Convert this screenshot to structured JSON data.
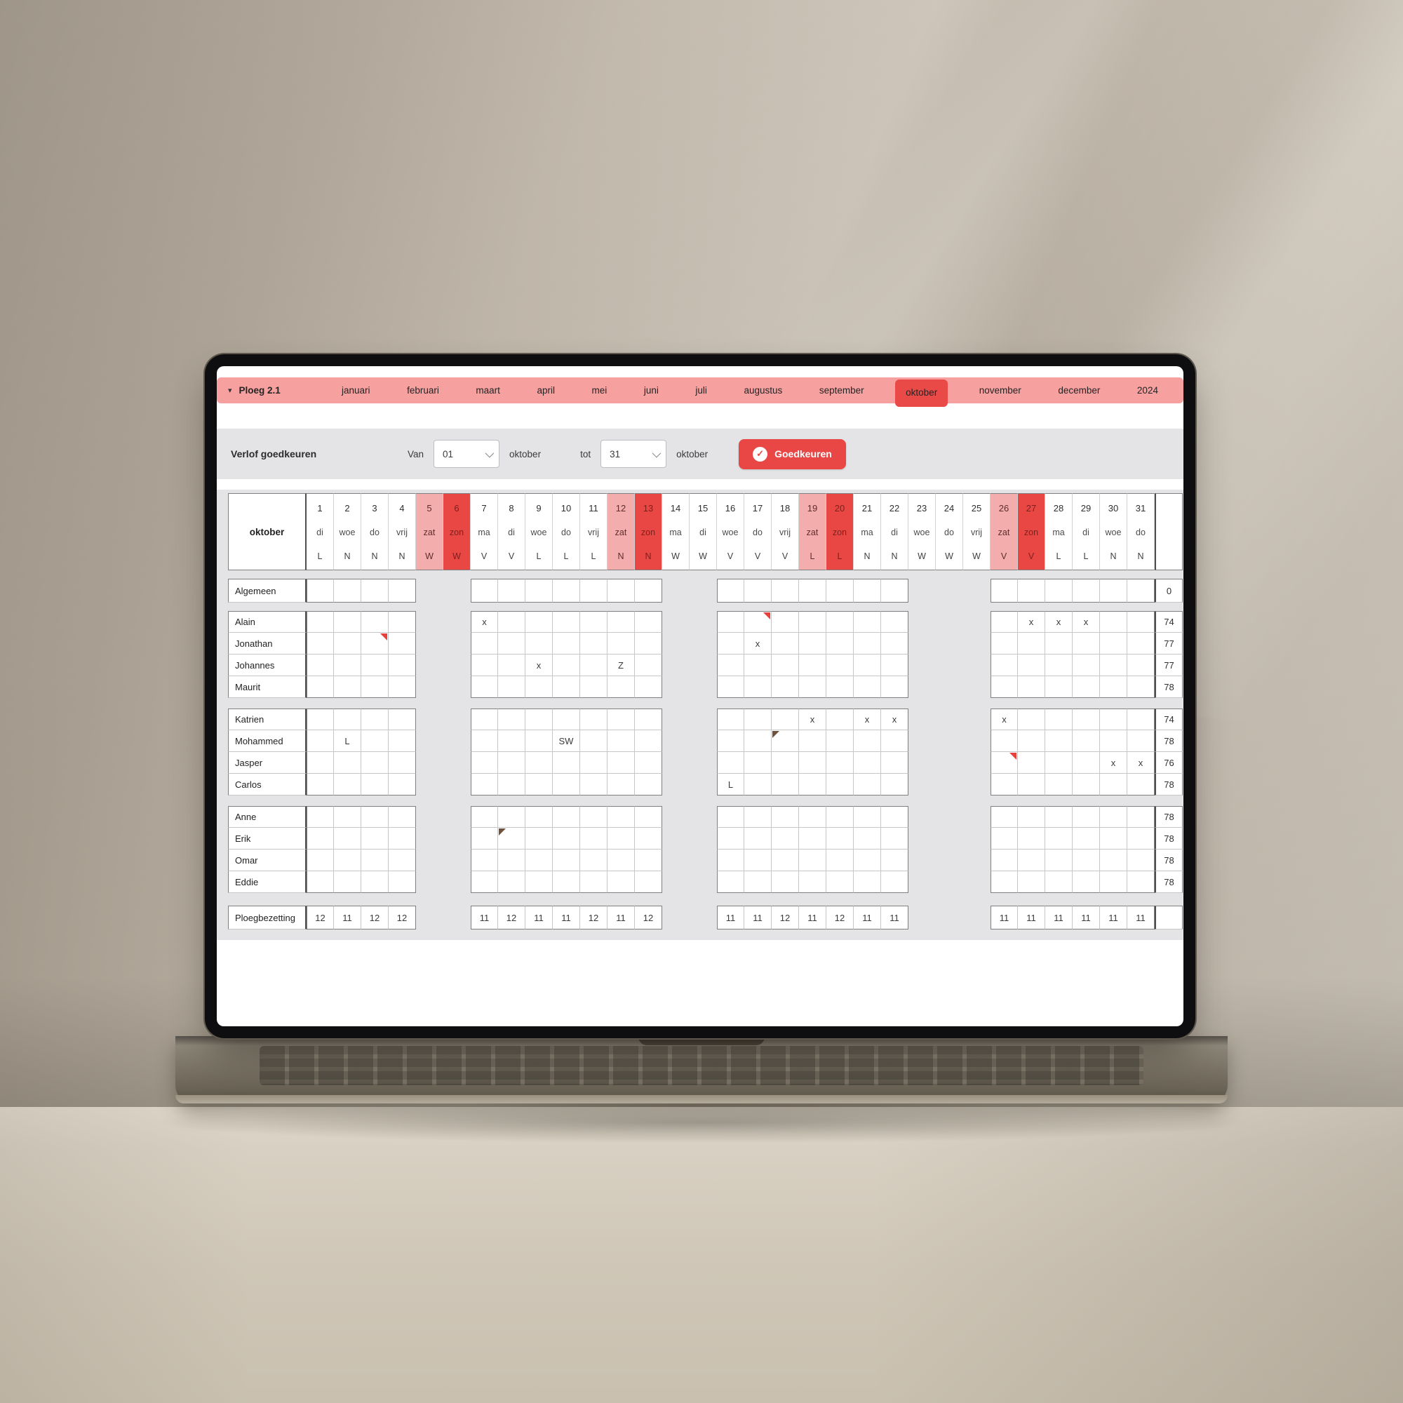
{
  "nav": {
    "caret_icon": "▾",
    "team_label": "Ploeg 2.1",
    "months": [
      "januari",
      "februari",
      "maart",
      "april",
      "mei",
      "juni",
      "juli",
      "augustus",
      "september",
      "oktober",
      "november",
      "december"
    ],
    "active_month": "oktober",
    "year_label": "2024"
  },
  "toolbar": {
    "title": "Verlof goedkeuren",
    "from_label": "Van",
    "from_day": "01",
    "from_month": "oktober",
    "to_label": "tot",
    "to_day": "31",
    "to_month": "oktober",
    "approve_label": "Goedkeuren",
    "check_icon": "✓"
  },
  "calendar": {
    "month_label": "oktober",
    "blocks": [
      [
        1,
        4
      ],
      [
        7,
        13
      ],
      [
        16,
        22
      ],
      [
        26,
        31
      ]
    ],
    "days": [
      {
        "num": "1",
        "wd": "di",
        "shift": "L",
        "kind": ""
      },
      {
        "num": "2",
        "wd": "woe",
        "shift": "N",
        "kind": ""
      },
      {
        "num": "3",
        "wd": "do",
        "shift": "N",
        "kind": ""
      },
      {
        "num": "4",
        "wd": "vrij",
        "shift": "N",
        "kind": ""
      },
      {
        "num": "5",
        "wd": "zat",
        "shift": "W",
        "kind": "sat"
      },
      {
        "num": "6",
        "wd": "zon",
        "shift": "W",
        "kind": "sun"
      },
      {
        "num": "7",
        "wd": "ma",
        "shift": "V",
        "kind": ""
      },
      {
        "num": "8",
        "wd": "di",
        "shift": "V",
        "kind": ""
      },
      {
        "num": "9",
        "wd": "woe",
        "shift": "L",
        "kind": ""
      },
      {
        "num": "10",
        "wd": "do",
        "shift": "L",
        "kind": ""
      },
      {
        "num": "11",
        "wd": "vrij",
        "shift": "L",
        "kind": ""
      },
      {
        "num": "12",
        "wd": "zat",
        "shift": "N",
        "kind": "sat"
      },
      {
        "num": "13",
        "wd": "zon",
        "shift": "N",
        "kind": "sun"
      },
      {
        "num": "14",
        "wd": "ma",
        "shift": "W",
        "kind": ""
      },
      {
        "num": "15",
        "wd": "di",
        "shift": "W",
        "kind": ""
      },
      {
        "num": "16",
        "wd": "woe",
        "shift": "V",
        "kind": ""
      },
      {
        "num": "17",
        "wd": "do",
        "shift": "V",
        "kind": ""
      },
      {
        "num": "18",
        "wd": "vrij",
        "shift": "V",
        "kind": ""
      },
      {
        "num": "19",
        "wd": "zat",
        "shift": "L",
        "kind": "sat"
      },
      {
        "num": "20",
        "wd": "zon",
        "shift": "L",
        "kind": "sun"
      },
      {
        "num": "21",
        "wd": "ma",
        "shift": "N",
        "kind": ""
      },
      {
        "num": "22",
        "wd": "di",
        "shift": "N",
        "kind": ""
      },
      {
        "num": "23",
        "wd": "woe",
        "shift": "W",
        "kind": ""
      },
      {
        "num": "24",
        "wd": "do",
        "shift": "W",
        "kind": ""
      },
      {
        "num": "25",
        "wd": "vrij",
        "shift": "W",
        "kind": ""
      },
      {
        "num": "26",
        "wd": "zat",
        "shift": "V",
        "kind": "sat"
      },
      {
        "num": "27",
        "wd": "zon",
        "shift": "V",
        "kind": "sun"
      },
      {
        "num": "28",
        "wd": "ma",
        "shift": "L",
        "kind": ""
      },
      {
        "num": "29",
        "wd": "di",
        "shift": "L",
        "kind": ""
      },
      {
        "num": "30",
        "wd": "woe",
        "shift": "N",
        "kind": ""
      },
      {
        "num": "31",
        "wd": "do",
        "shift": "N",
        "kind": ""
      }
    ],
    "groups": [
      {
        "rows": [
          {
            "name": "Algemeen",
            "total": "0",
            "marks": []
          }
        ]
      },
      {
        "rows": [
          {
            "name": "Alain",
            "total": "74",
            "marks": [
              {
                "day": 7,
                "text": "x"
              },
              {
                "day": 17,
                "corner": "red"
              },
              {
                "day": 27,
                "text": "x"
              },
              {
                "day": 28,
                "text": "x"
              },
              {
                "day": 29,
                "text": "x"
              }
            ]
          },
          {
            "name": "Jonathan",
            "total": "77",
            "marks": [
              {
                "day": 3,
                "corner": "red"
              },
              {
                "day": 17,
                "text": "x"
              }
            ]
          },
          {
            "name": "Johannes",
            "total": "77",
            "marks": [
              {
                "day": 9,
                "text": "x"
              },
              {
                "day": 12,
                "text": "Z"
              }
            ]
          },
          {
            "name": "Maurit",
            "total": "78",
            "marks": []
          }
        ]
      },
      {
        "rows": [
          {
            "name": "Katrien",
            "total": "74",
            "marks": [
              {
                "day": 19,
                "text": "x"
              },
              {
                "day": 21,
                "text": "x"
              },
              {
                "day": 22,
                "text": "x"
              },
              {
                "day": 26,
                "text": "x"
              }
            ]
          },
          {
            "name": "Mohammed",
            "total": "78",
            "marks": [
              {
                "day": 2,
                "text": "L"
              },
              {
                "day": 10,
                "text": "SW"
              },
              {
                "day": 18,
                "corner": "brown"
              }
            ]
          },
          {
            "name": "Jasper",
            "total": "76",
            "marks": [
              {
                "day": 26,
                "corner": "red"
              },
              {
                "day": 30,
                "text": "x"
              },
              {
                "day": 31,
                "text": "x"
              }
            ]
          },
          {
            "name": "Carlos",
            "total": "78",
            "marks": [
              {
                "day": 16,
                "text": "L"
              }
            ]
          }
        ]
      },
      {
        "rows": [
          {
            "name": "Anne",
            "total": "78",
            "marks": []
          },
          {
            "name": "Erik",
            "total": "78",
            "marks": [
              {
                "day": 8,
                "corner": "brown"
              }
            ]
          },
          {
            "name": "Omar",
            "total": "78",
            "marks": []
          },
          {
            "name": "Eddie",
            "total": "78",
            "marks": []
          }
        ]
      }
    ],
    "footer": {
      "name": "Ploegbezetting",
      "values": {
        "1": "12",
        "2": "11",
        "3": "12",
        "4": "12",
        "7": "11",
        "8": "12",
        "9": "11",
        "10": "11",
        "11": "12",
        "12": "11",
        "13": "12",
        "16": "11",
        "17": "11",
        "18": "12",
        "19": "11",
        "20": "12",
        "21": "11",
        "22": "11",
        "26": "11",
        "27": "11",
        "28": "11",
        "29": "11",
        "30": "11",
        "31": "11"
      },
      "total": ""
    }
  },
  "colors": {
    "accent_red": "#e84746",
    "active_month_red": "#e94a47",
    "nav_pink": "#f6a0a0",
    "saturday_pink": "#f3adac",
    "sunday_red": "#e94744",
    "panel_gray": "#e4e4e6"
  }
}
